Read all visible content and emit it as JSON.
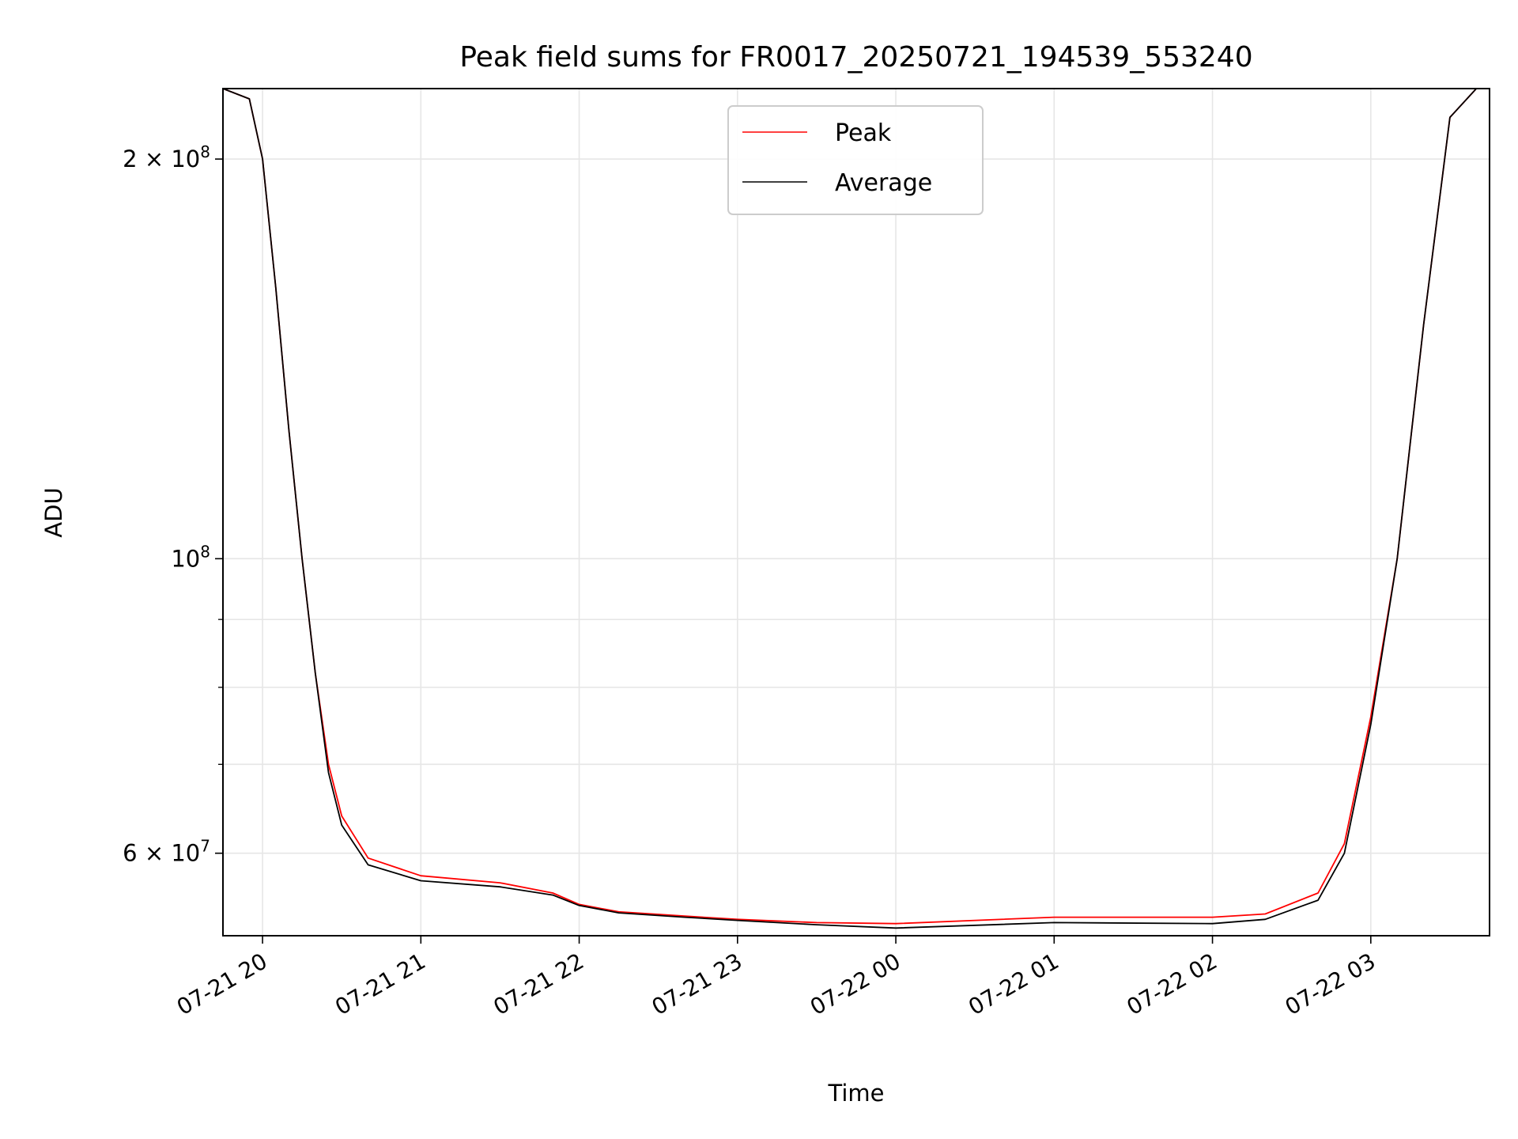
{
  "chart_data": {
    "type": "line",
    "title": "Peak field sums for FR0017_20250721_194539_553240",
    "xlabel": "Time",
    "ylabel": "ADU",
    "y_scale": "log",
    "grid": true,
    "legend_position": "top-center",
    "x_range": [
      "2025-07-21 19:45",
      "2025-07-22 03:45"
    ],
    "ylim": [
      52000000,
      226000000
    ],
    "x_ticks": [
      "07-21 20",
      "07-21 21",
      "07-21 22",
      "07-21 23",
      "07-22 00",
      "07-22 01",
      "07-22 02",
      "07-22 03"
    ],
    "y_ticks": [
      {
        "value": 60000000,
        "base": "6",
        "times": "×",
        "mantissa": "10",
        "exp": "7"
      },
      {
        "value": 100000000,
        "base": "",
        "times": "",
        "mantissa": "10",
        "exp": "8"
      },
      {
        "value": 200000000,
        "base": "2",
        "times": "×",
        "mantissa": "10",
        "exp": "8"
      }
    ],
    "y_minor_ticks": [
      70000000,
      80000000,
      90000000
    ],
    "series": [
      {
        "name": "Peak",
        "color": "#ff0000",
        "points": [
          [
            "2025-07-21 19:45",
            226000000
          ],
          [
            "2025-07-21 19:55",
            222000000
          ],
          [
            "2025-07-21 20:00",
            200000000
          ],
          [
            "2025-07-21 20:05",
            160000000
          ],
          [
            "2025-07-21 20:10",
            125000000
          ],
          [
            "2025-07-21 20:15",
            100000000
          ],
          [
            "2025-07-21 20:20",
            82000000
          ],
          [
            "2025-07-21 20:25",
            70000000
          ],
          [
            "2025-07-21 20:30",
            64000000
          ],
          [
            "2025-07-21 20:40",
            59500000
          ],
          [
            "2025-07-21 21:00",
            57700000
          ],
          [
            "2025-07-21 21:30",
            57000000
          ],
          [
            "2025-07-21 21:50",
            56000000
          ],
          [
            "2025-07-21 22:00",
            54900000
          ],
          [
            "2025-07-21 22:15",
            54200000
          ],
          [
            "2025-07-21 22:40",
            53800000
          ],
          [
            "2025-07-21 23:00",
            53500000
          ],
          [
            "2025-07-21 23:30",
            53200000
          ],
          [
            "2025-07-22 00:00",
            53100000
          ],
          [
            "2025-07-22 01:00",
            53700000
          ],
          [
            "2025-07-22 02:00",
            53700000
          ],
          [
            "2025-07-22 02:20",
            54000000
          ],
          [
            "2025-07-22 02:40",
            56000000
          ],
          [
            "2025-07-22 02:50",
            61000000
          ],
          [
            "2025-07-22 03:00",
            76000000
          ],
          [
            "2025-07-22 03:10",
            100000000
          ],
          [
            "2025-07-22 03:20",
            150000000
          ],
          [
            "2025-07-22 03:30",
            215000000
          ],
          [
            "2025-07-22 03:40",
            226000000
          ]
        ]
      },
      {
        "name": "Average",
        "color": "#000000",
        "points": [
          [
            "2025-07-21 19:45",
            226000000
          ],
          [
            "2025-07-21 19:55",
            222000000
          ],
          [
            "2025-07-21 20:00",
            200000000
          ],
          [
            "2025-07-21 20:05",
            160000000
          ],
          [
            "2025-07-21 20:10",
            125000000
          ],
          [
            "2025-07-21 20:15",
            100000000
          ],
          [
            "2025-07-21 20:20",
            82000000
          ],
          [
            "2025-07-21 20:25",
            69000000
          ],
          [
            "2025-07-21 20:30",
            63000000
          ],
          [
            "2025-07-21 20:40",
            58800000
          ],
          [
            "2025-07-21 21:00",
            57200000
          ],
          [
            "2025-07-21 21:30",
            56600000
          ],
          [
            "2025-07-21 21:50",
            55800000
          ],
          [
            "2025-07-21 22:00",
            54800000
          ],
          [
            "2025-07-21 22:15",
            54100000
          ],
          [
            "2025-07-21 22:40",
            53700000
          ],
          [
            "2025-07-21 23:00",
            53400000
          ],
          [
            "2025-07-21 23:30",
            53000000
          ],
          [
            "2025-07-22 00:00",
            52700000
          ],
          [
            "2025-07-22 01:00",
            53200000
          ],
          [
            "2025-07-22 02:00",
            53100000
          ],
          [
            "2025-07-22 02:20",
            53500000
          ],
          [
            "2025-07-22 02:40",
            55300000
          ],
          [
            "2025-07-22 02:50",
            60000000
          ],
          [
            "2025-07-22 03:00",
            75000000
          ],
          [
            "2025-07-22 03:10",
            100000000
          ],
          [
            "2025-07-22 03:20",
            150000000
          ],
          [
            "2025-07-22 03:30",
            215000000
          ],
          [
            "2025-07-22 03:40",
            226000000
          ]
        ]
      }
    ]
  }
}
